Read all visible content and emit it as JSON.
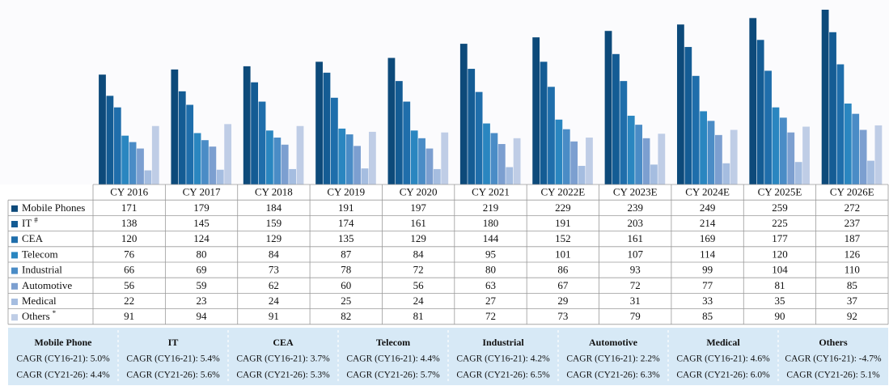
{
  "chart_data": {
    "type": "bar",
    "categories": [
      "CY 2016",
      "CY 2017",
      "CY 2018",
      "CY 2019",
      "CY 2020",
      "CY 2021",
      "CY 2022E",
      "CY 2023E",
      "CY 2024E",
      "CY 2025E",
      "CY 2026E"
    ],
    "series": [
      {
        "name": "Mobile Phones",
        "color": "#0d4a7a",
        "values": [
          171,
          179,
          184,
          191,
          197,
          219,
          229,
          239,
          249,
          259,
          272
        ]
      },
      {
        "name": "IT",
        "footnote": "#",
        "color": "#145c94",
        "values": [
          138,
          145,
          159,
          174,
          161,
          180,
          191,
          203,
          214,
          225,
          237
        ]
      },
      {
        "name": "CEA",
        "color": "#1f6eab",
        "values": [
          120,
          124,
          129,
          135,
          129,
          144,
          152,
          161,
          169,
          177,
          187
        ]
      },
      {
        "name": "Telecom",
        "color": "#2a86c0",
        "values": [
          76,
          80,
          84,
          87,
          84,
          95,
          101,
          107,
          114,
          120,
          126
        ]
      },
      {
        "name": "Industrial",
        "color": "#4a8cc6",
        "values": [
          66,
          69,
          73,
          78,
          72,
          80,
          86,
          93,
          99,
          104,
          110
        ]
      },
      {
        "name": "Automotive",
        "color": "#7c9fd0",
        "values": [
          56,
          59,
          62,
          60,
          56,
          63,
          67,
          72,
          77,
          81,
          85
        ]
      },
      {
        "name": "Medical",
        "color": "#a5bde0",
        "values": [
          22,
          23,
          24,
          25,
          24,
          27,
          29,
          31,
          33,
          35,
          37
        ]
      },
      {
        "name": "Others",
        "footnote": "*",
        "color": "#bfcde6",
        "values": [
          91,
          94,
          91,
          82,
          81,
          72,
          73,
          79,
          85,
          90,
          92
        ]
      }
    ],
    "cagr": [
      {
        "title": "Mobile Phone",
        "lines": [
          "CAGR (CY16-21): 5.0%",
          "CAGR (CY21-26): 4.4%"
        ]
      },
      {
        "title": "IT",
        "lines": [
          "CAGR (CY16-21): 5.4%",
          "CAGR (CY21-26): 5.6%"
        ]
      },
      {
        "title": "CEA",
        "lines": [
          "CAGR (CY16-21): 3.7%",
          "CAGR (CY21-26): 5.3%"
        ]
      },
      {
        "title": "Telecom",
        "lines": [
          "CAGR (CY16-21): 4.4%",
          "CAGR (CY21-26): 5.7%"
        ]
      },
      {
        "title": "Industrial",
        "lines": [
          "CAGR (CY16-21): 4.2%",
          "CAGR (CY21-26): 6.5%"
        ]
      },
      {
        "title": "Automotive",
        "lines": [
          "CAGR (CY16-21): 2.2%",
          "CAGR (CY21-26): 6.3%"
        ]
      },
      {
        "title": "Medical",
        "lines": [
          "CAGR (CY16-21): 4.6%",
          "CAGR (CY21-26): 6.0%"
        ]
      },
      {
        "title": "Others",
        "lines": [
          "CAGR (CY16-21): -4.7%",
          "CAGR (CY21-26): 5.1%"
        ]
      }
    ]
  }
}
